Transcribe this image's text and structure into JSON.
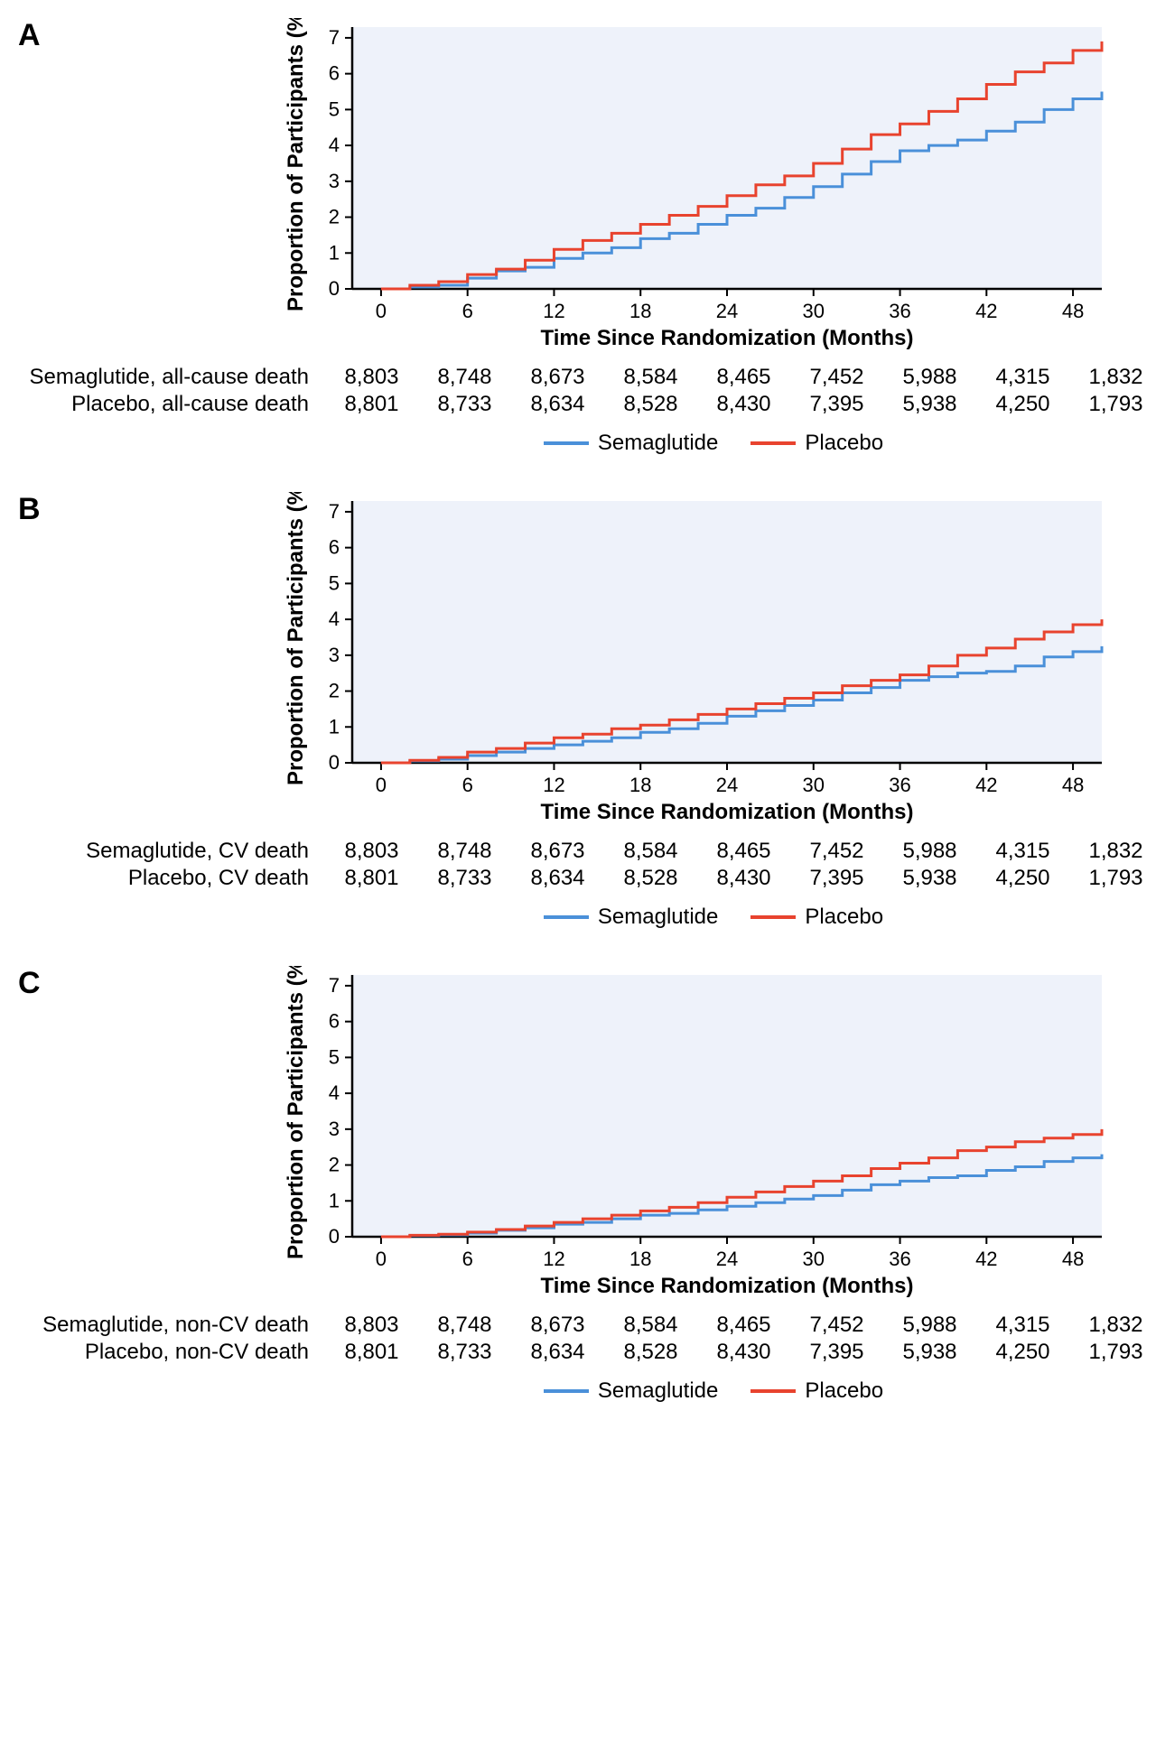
{
  "colors": {
    "semaglutide": "#4a90d9",
    "placebo": "#e8432e",
    "plot_bg": "#eef2fa",
    "axis": "#000000",
    "text": "#000000"
  },
  "legend": {
    "semaglutide": "Semaglutide",
    "placebo": "Placebo"
  },
  "axis": {
    "x_label": "Time Since Randomization (Months)",
    "y_label": "Proportion of Participants (%)",
    "x_ticks": [
      0,
      6,
      12,
      18,
      24,
      30,
      36,
      42,
      48
    ],
    "y_ticks": [
      0,
      1,
      2,
      3,
      4,
      5,
      6,
      7
    ],
    "xlim": [
      -2,
      50
    ],
    "ylim": [
      0,
      7.3
    ],
    "line_width": 3,
    "tick_fontsize": 22,
    "label_fontsize": 24,
    "label_fontweight": "bold"
  },
  "panels": [
    {
      "id": "A",
      "risk_rows": [
        {
          "label": "Semaglutide, all-cause death",
          "values": [
            "8,803",
            "8,748",
            "8,673",
            "8,584",
            "8,465",
            "7,452",
            "5,988",
            "4,315",
            "1,832"
          ]
        },
        {
          "label": "Placebo, all-cause death",
          "values": [
            "8,801",
            "8,733",
            "8,634",
            "8,528",
            "8,430",
            "7,395",
            "5,938",
            "4,250",
            "1,793"
          ]
        }
      ],
      "series": {
        "semaglutide": [
          [
            0,
            0
          ],
          [
            2,
            0.05
          ],
          [
            4,
            0.1
          ],
          [
            6,
            0.3
          ],
          [
            8,
            0.5
          ],
          [
            10,
            0.6
          ],
          [
            12,
            0.85
          ],
          [
            14,
            1.0
          ],
          [
            16,
            1.15
          ],
          [
            18,
            1.4
          ],
          [
            20,
            1.55
          ],
          [
            22,
            1.8
          ],
          [
            24,
            2.05
          ],
          [
            26,
            2.25
          ],
          [
            28,
            2.55
          ],
          [
            30,
            2.85
          ],
          [
            32,
            3.2
          ],
          [
            34,
            3.55
          ],
          [
            36,
            3.85
          ],
          [
            38,
            4.0
          ],
          [
            40,
            4.15
          ],
          [
            42,
            4.4
          ],
          [
            44,
            4.65
          ],
          [
            46,
            5.0
          ],
          [
            48,
            5.3
          ],
          [
            50,
            5.5
          ]
        ],
        "placebo": [
          [
            0,
            0
          ],
          [
            2,
            0.1
          ],
          [
            4,
            0.2
          ],
          [
            6,
            0.4
          ],
          [
            8,
            0.55
          ],
          [
            10,
            0.8
          ],
          [
            12,
            1.1
          ],
          [
            14,
            1.35
          ],
          [
            16,
            1.55
          ],
          [
            18,
            1.8
          ],
          [
            20,
            2.05
          ],
          [
            22,
            2.3
          ],
          [
            24,
            2.6
          ],
          [
            26,
            2.9
          ],
          [
            28,
            3.15
          ],
          [
            30,
            3.5
          ],
          [
            32,
            3.9
          ],
          [
            34,
            4.3
          ],
          [
            36,
            4.6
          ],
          [
            38,
            4.95
          ],
          [
            40,
            5.3
          ],
          [
            42,
            5.7
          ],
          [
            44,
            6.05
          ],
          [
            46,
            6.3
          ],
          [
            48,
            6.65
          ],
          [
            50,
            6.9
          ]
        ]
      }
    },
    {
      "id": "B",
      "risk_rows": [
        {
          "label": "Semaglutide, CV death",
          "values": [
            "8,803",
            "8,748",
            "8,673",
            "8,584",
            "8,465",
            "7,452",
            "5,988",
            "4,315",
            "1,832"
          ]
        },
        {
          "label": "Placebo, CV death",
          "values": [
            "8,801",
            "8,733",
            "8,634",
            "8,528",
            "8,430",
            "7,395",
            "5,938",
            "4,250",
            "1,793"
          ]
        }
      ],
      "series": {
        "semaglutide": [
          [
            0,
            0
          ],
          [
            2,
            0.05
          ],
          [
            4,
            0.1
          ],
          [
            6,
            0.2
          ],
          [
            8,
            0.3
          ],
          [
            10,
            0.4
          ],
          [
            12,
            0.5
          ],
          [
            14,
            0.6
          ],
          [
            16,
            0.7
          ],
          [
            18,
            0.85
          ],
          [
            20,
            0.95
          ],
          [
            22,
            1.1
          ],
          [
            24,
            1.3
          ],
          [
            26,
            1.45
          ],
          [
            28,
            1.6
          ],
          [
            30,
            1.75
          ],
          [
            32,
            1.95
          ],
          [
            34,
            2.1
          ],
          [
            36,
            2.3
          ],
          [
            38,
            2.4
          ],
          [
            40,
            2.5
          ],
          [
            42,
            2.55
          ],
          [
            44,
            2.7
          ],
          [
            46,
            2.95
          ],
          [
            48,
            3.1
          ],
          [
            50,
            3.25
          ]
        ],
        "placebo": [
          [
            0,
            0
          ],
          [
            2,
            0.07
          ],
          [
            4,
            0.15
          ],
          [
            6,
            0.3
          ],
          [
            8,
            0.4
          ],
          [
            10,
            0.55
          ],
          [
            12,
            0.7
          ],
          [
            14,
            0.8
          ],
          [
            16,
            0.95
          ],
          [
            18,
            1.05
          ],
          [
            20,
            1.2
          ],
          [
            22,
            1.35
          ],
          [
            24,
            1.5
          ],
          [
            26,
            1.65
          ],
          [
            28,
            1.8
          ],
          [
            30,
            1.95
          ],
          [
            32,
            2.15
          ],
          [
            34,
            2.3
          ],
          [
            36,
            2.45
          ],
          [
            38,
            2.7
          ],
          [
            40,
            3.0
          ],
          [
            42,
            3.2
          ],
          [
            44,
            3.45
          ],
          [
            46,
            3.65
          ],
          [
            48,
            3.85
          ],
          [
            50,
            4.0
          ]
        ]
      }
    },
    {
      "id": "C",
      "risk_rows": [
        {
          "label": "Semaglutide, non-CV death",
          "values": [
            "8,803",
            "8,748",
            "8,673",
            "8,584",
            "8,465",
            "7,452",
            "5,988",
            "4,315",
            "1,832"
          ]
        },
        {
          "label": "Placebo, non-CV death",
          "values": [
            "8,801",
            "8,733",
            "8,634",
            "8,528",
            "8,430",
            "7,395",
            "5,938",
            "4,250",
            "1,793"
          ]
        }
      ],
      "series": {
        "semaglutide": [
          [
            0,
            0
          ],
          [
            2,
            0.03
          ],
          [
            4,
            0.05
          ],
          [
            6,
            0.1
          ],
          [
            8,
            0.18
          ],
          [
            10,
            0.25
          ],
          [
            12,
            0.35
          ],
          [
            14,
            0.4
          ],
          [
            16,
            0.5
          ],
          [
            18,
            0.6
          ],
          [
            20,
            0.65
          ],
          [
            22,
            0.75
          ],
          [
            24,
            0.85
          ],
          [
            26,
            0.95
          ],
          [
            28,
            1.05
          ],
          [
            30,
            1.15
          ],
          [
            32,
            1.3
          ],
          [
            34,
            1.45
          ],
          [
            36,
            1.55
          ],
          [
            38,
            1.65
          ],
          [
            40,
            1.7
          ],
          [
            42,
            1.85
          ],
          [
            44,
            1.95
          ],
          [
            46,
            2.1
          ],
          [
            48,
            2.2
          ],
          [
            50,
            2.3
          ]
        ],
        "placebo": [
          [
            0,
            0
          ],
          [
            2,
            0.04
          ],
          [
            4,
            0.07
          ],
          [
            6,
            0.13
          ],
          [
            8,
            0.2
          ],
          [
            10,
            0.3
          ],
          [
            12,
            0.4
          ],
          [
            14,
            0.5
          ],
          [
            16,
            0.6
          ],
          [
            18,
            0.72
          ],
          [
            20,
            0.82
          ],
          [
            22,
            0.95
          ],
          [
            24,
            1.1
          ],
          [
            26,
            1.25
          ],
          [
            28,
            1.4
          ],
          [
            30,
            1.55
          ],
          [
            32,
            1.7
          ],
          [
            34,
            1.9
          ],
          [
            36,
            2.05
          ],
          [
            38,
            2.2
          ],
          [
            40,
            2.4
          ],
          [
            42,
            2.5
          ],
          [
            44,
            2.65
          ],
          [
            46,
            2.75
          ],
          [
            48,
            2.85
          ],
          [
            50,
            3.0
          ]
        ]
      }
    }
  ]
}
